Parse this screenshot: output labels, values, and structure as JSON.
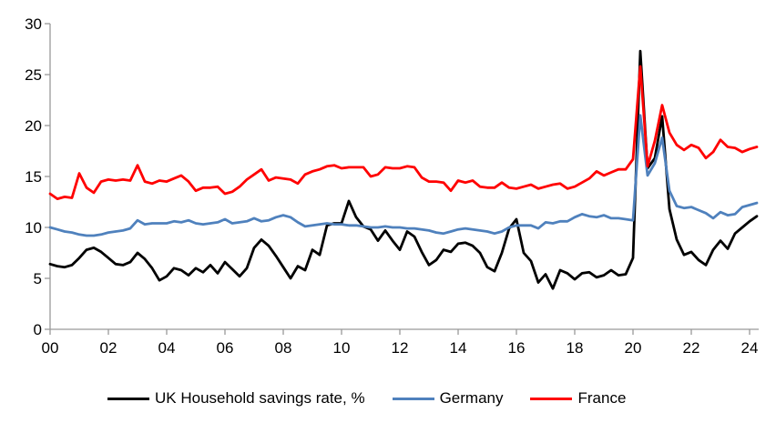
{
  "chart_data": {
    "type": "line",
    "title": "",
    "x_axis": {
      "unit": "quarterly",
      "start_year": 2000,
      "tick_labels": [
        "00",
        "02",
        "04",
        "06",
        "08",
        "10",
        "12",
        "14",
        "16",
        "18",
        "20",
        "22",
        "24"
      ],
      "tick_years": [
        0,
        2,
        4,
        6,
        8,
        10,
        12,
        14,
        16,
        18,
        20,
        22,
        24
      ]
    },
    "y_axis": {
      "ticks": [
        0,
        5,
        10,
        15,
        20,
        25,
        30
      ],
      "ylim": [
        0,
        30
      ]
    },
    "grid": false,
    "legend_position": "bottom",
    "axis_color": "#999999",
    "series": [
      {
        "name": "UK Household savings rate, %",
        "color": "#000000",
        "values": [
          6.4,
          6.2,
          6.1,
          6.3,
          7.0,
          7.8,
          8.0,
          7.6,
          7.0,
          6.4,
          6.3,
          6.6,
          7.5,
          6.9,
          6.0,
          4.8,
          5.2,
          6.0,
          5.8,
          5.3,
          6.0,
          5.6,
          6.3,
          5.5,
          6.6,
          5.9,
          5.2,
          6.0,
          8.0,
          8.8,
          8.2,
          7.2,
          6.1,
          5.0,
          6.2,
          5.8,
          7.8,
          7.3,
          10.2,
          10.4,
          10.4,
          12.6,
          11.0,
          10.1,
          9.8,
          8.7,
          9.7,
          8.7,
          7.8,
          9.6,
          9.1,
          7.6,
          6.3,
          6.8,
          7.8,
          7.6,
          8.4,
          8.5,
          8.2,
          7.5,
          6.1,
          5.7,
          7.5,
          9.9,
          10.8,
          7.5,
          6.7,
          4.6,
          5.4,
          4.0,
          5.8,
          5.5,
          4.9,
          5.5,
          5.6,
          5.1,
          5.3,
          5.8,
          5.3,
          5.4,
          7.0,
          27.3,
          15.8,
          16.8,
          20.9,
          11.8,
          8.8,
          7.3,
          7.6,
          6.8,
          6.3,
          7.8,
          8.7,
          7.9,
          9.4,
          10.0,
          10.6,
          11.1
        ]
      },
      {
        "name": "Germany",
        "color": "#4F81BD",
        "values": [
          10.0,
          9.8,
          9.6,
          9.5,
          9.3,
          9.2,
          9.2,
          9.3,
          9.5,
          9.6,
          9.7,
          9.9,
          10.7,
          10.3,
          10.4,
          10.4,
          10.4,
          10.6,
          10.5,
          10.7,
          10.4,
          10.3,
          10.4,
          10.5,
          10.8,
          10.4,
          10.5,
          10.6,
          10.9,
          10.6,
          10.7,
          11.0,
          11.2,
          11.0,
          10.5,
          10.1,
          10.2,
          10.3,
          10.4,
          10.3,
          10.3,
          10.2,
          10.2,
          10.1,
          10.0,
          10.0,
          10.1,
          10.0,
          10.0,
          9.9,
          9.9,
          9.8,
          9.7,
          9.5,
          9.4,
          9.6,
          9.8,
          9.9,
          9.8,
          9.7,
          9.6,
          9.4,
          9.6,
          10.0,
          10.2,
          10.2,
          10.2,
          9.9,
          10.5,
          10.4,
          10.6,
          10.6,
          11.0,
          11.3,
          11.1,
          11.0,
          11.2,
          10.9,
          10.9,
          10.8,
          10.7,
          21.0,
          15.1,
          16.3,
          18.8,
          13.6,
          12.1,
          11.9,
          12.0,
          11.7,
          11.4,
          10.9,
          11.5,
          11.2,
          11.3,
          12.0,
          12.2,
          12.4
        ]
      },
      {
        "name": "France",
        "color": "#FF0000",
        "values": [
          13.3,
          12.8,
          13.0,
          12.9,
          15.3,
          13.9,
          13.4,
          14.5,
          14.7,
          14.6,
          14.7,
          14.6,
          16.1,
          14.5,
          14.3,
          14.6,
          14.5,
          14.8,
          15.1,
          14.5,
          13.6,
          13.9,
          13.9,
          14.0,
          13.3,
          13.5,
          14.0,
          14.7,
          15.2,
          15.7,
          14.6,
          14.9,
          14.8,
          14.7,
          14.3,
          15.2,
          15.5,
          15.7,
          16.0,
          16.1,
          15.8,
          15.9,
          15.9,
          15.9,
          15.0,
          15.2,
          15.9,
          15.8,
          15.8,
          16.0,
          15.9,
          14.9,
          14.5,
          14.5,
          14.4,
          13.6,
          14.6,
          14.4,
          14.6,
          14.0,
          13.9,
          13.9,
          14.4,
          13.9,
          13.8,
          14.0,
          14.2,
          13.8,
          14.0,
          14.2,
          14.3,
          13.8,
          14.0,
          14.4,
          14.8,
          15.5,
          15.1,
          15.4,
          15.7,
          15.7,
          16.7,
          25.8,
          16.0,
          18.5,
          22.0,
          19.3,
          18.1,
          17.6,
          18.1,
          17.8,
          16.8,
          17.4,
          18.6,
          17.9,
          17.8,
          17.4,
          17.7,
          17.9
        ]
      }
    ]
  }
}
